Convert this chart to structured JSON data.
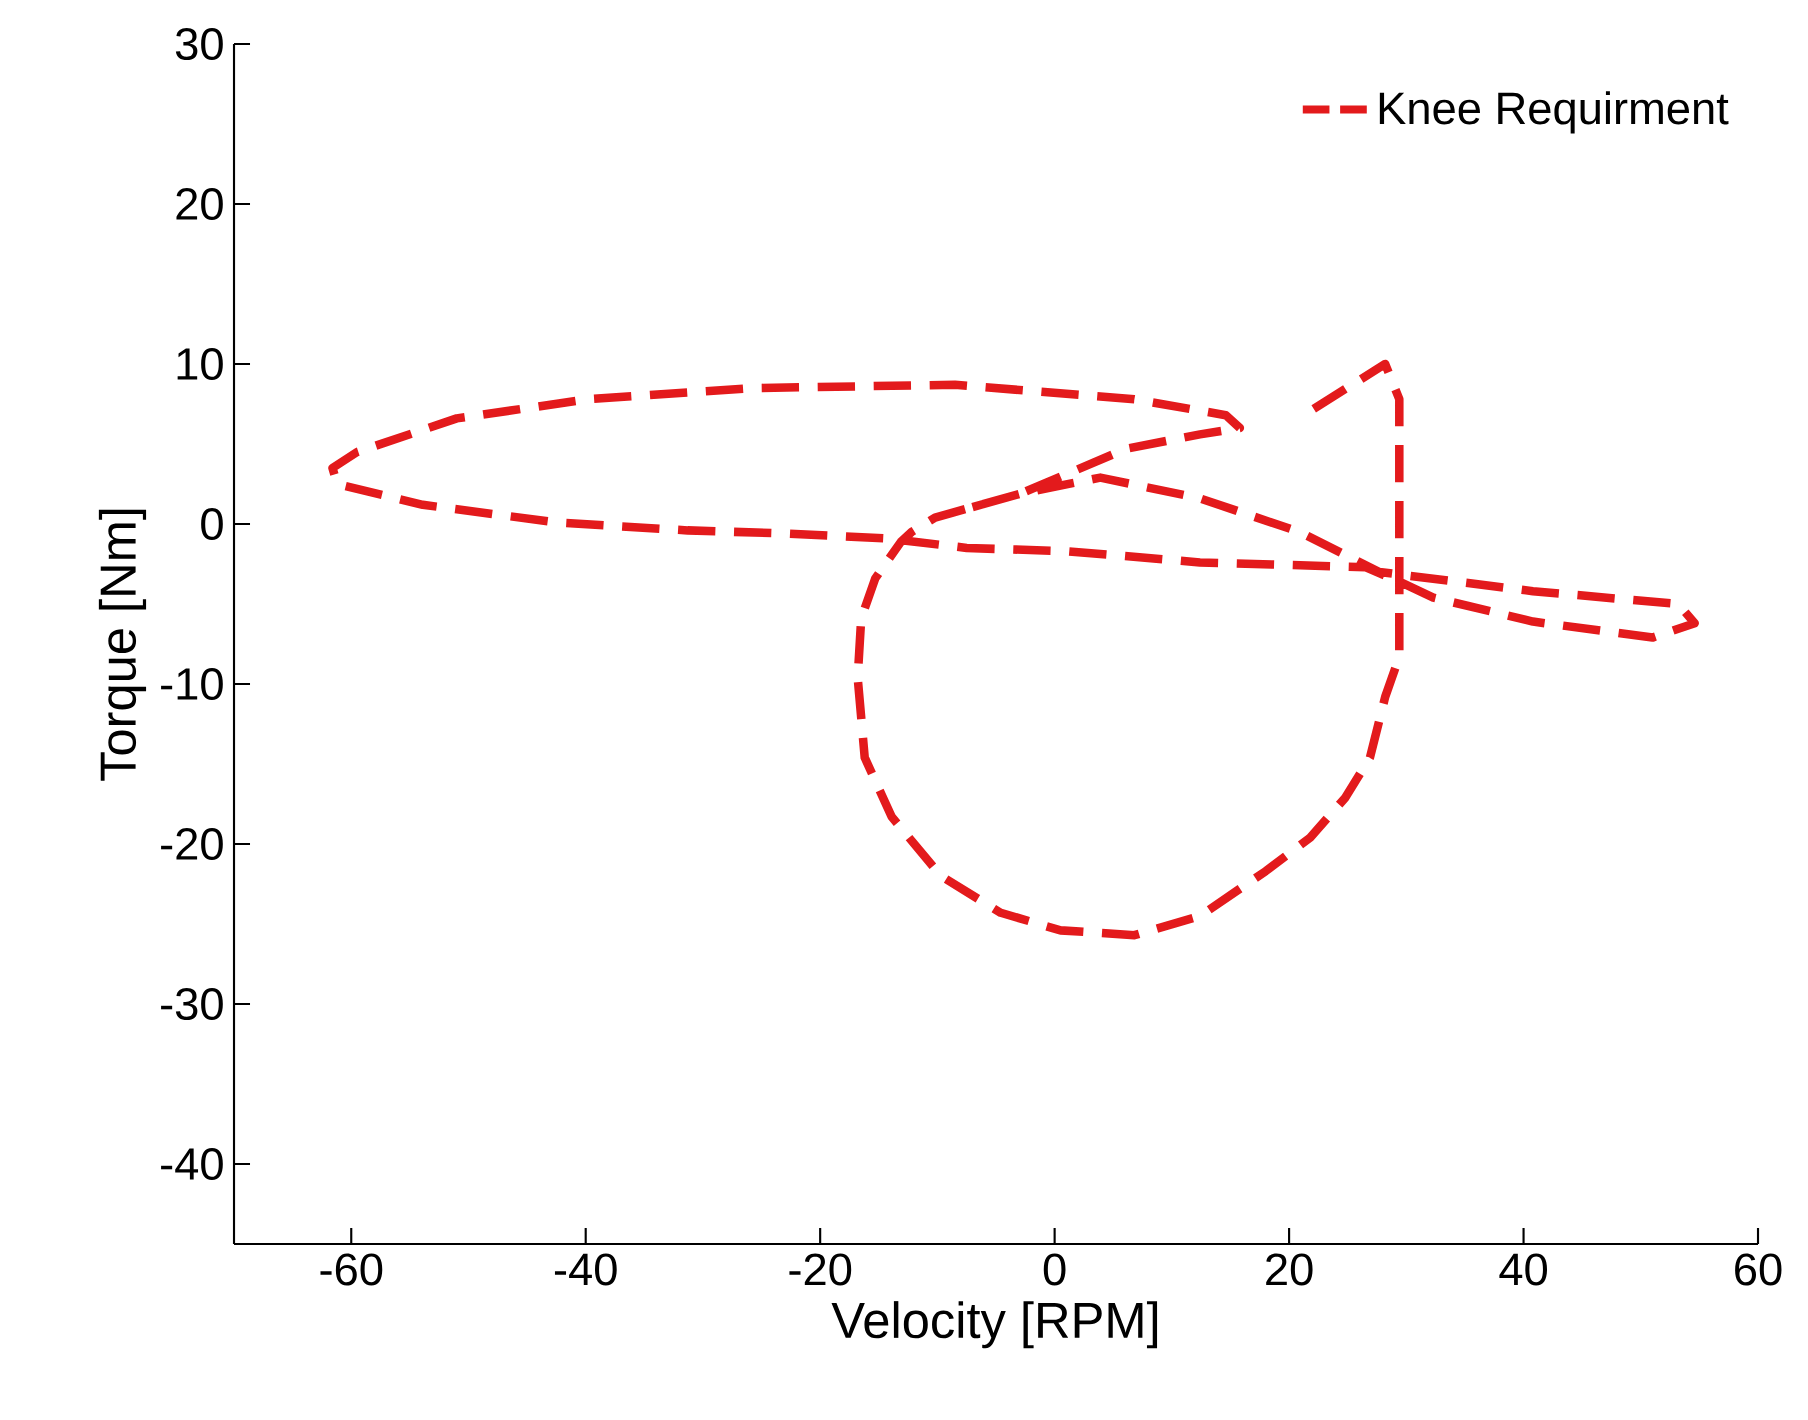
{
  "chart_data": {
    "type": "line",
    "xlabel": "Velocity [RPM]",
    "ylabel": "Torque [Nm]",
    "xlim": [
      -70,
      60
    ],
    "ylim": [
      -45,
      30
    ],
    "xticks": [
      -60,
      -40,
      -20,
      0,
      20,
      40,
      60
    ],
    "yticks": [
      -40,
      -30,
      -20,
      -10,
      0,
      10,
      20,
      30
    ],
    "legend": "top right",
    "line_style": "dashed",
    "series": [
      {
        "name": "Knee Requirment",
        "color": "#e31a1c",
        "x": [
          22.1,
          28.2,
          29.4,
          29.4,
          29.4,
          28.2,
          26.9,
          24.8,
          21.8,
          18.0,
          12.4,
          6.8,
          0.5,
          -4.6,
          -9.7,
          -13.9,
          -16.2,
          -16.8,
          -16.5,
          -15.3,
          -13.1,
          -12.2,
          -10.2,
          -2.9,
          3.9,
          12.4,
          20.9,
          27.7,
          40.8,
          53.2,
          54.6,
          51.0,
          40.8,
          32.3,
          29.4,
          26.5,
          12.4,
          1.0,
          -7.5,
          -14.3,
          -22.8,
          -31.3,
          -42.5,
          -53.9,
          -61.2,
          -61.6,
          -59.5,
          -51.0,
          -39.8,
          -25.5,
          -8.5,
          6.8,
          14.6,
          15.8,
          12.4,
          6.1,
          -2.9,
          -10.2
        ],
        "values": [
          7.2,
          10.0,
          7.8,
          -3.4,
          -8.3,
          -10.8,
          -14.6,
          -17.1,
          -19.6,
          -21.7,
          -24.5,
          -25.7,
          -25.4,
          -24.3,
          -22.0,
          -18.3,
          -14.6,
          -9.6,
          -5.9,
          -3.4,
          -1.1,
          -0.5,
          0.4,
          1.9,
          2.9,
          1.6,
          -0.5,
          -3.0,
          -4.2,
          -5.0,
          -6.2,
          -7.1,
          -6.1,
          -4.6,
          -3.6,
          -2.7,
          -2.4,
          -1.7,
          -1.5,
          -0.9,
          -0.6,
          -0.4,
          0.1,
          1.2,
          2.5,
          3.5,
          4.5,
          6.6,
          7.8,
          8.5,
          8.7,
          7.8,
          6.8,
          6.0,
          5.6,
          4.7,
          1.9,
          0.4
        ]
      }
    ]
  }
}
